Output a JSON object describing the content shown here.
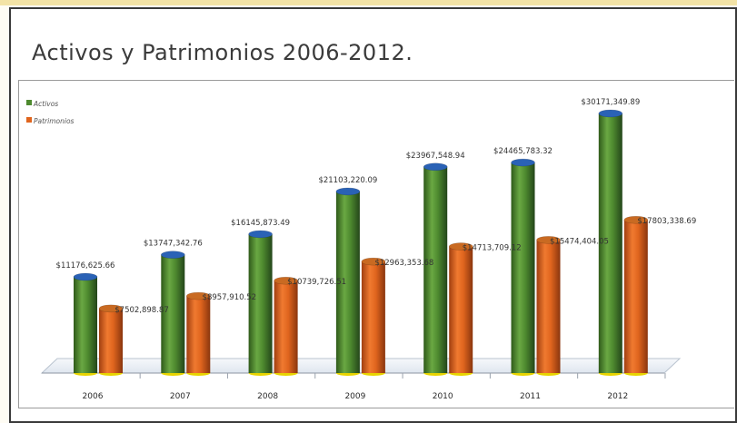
{
  "header": {
    "title": "Activos y Patrimonios 2006-2012."
  },
  "colors": {
    "activos": "#4e8a2f",
    "activos_top": "#2a62b6",
    "patrimonios": "#e0651e",
    "patrimonios_top": "#c96a22",
    "floor_edge": "#e8d400"
  },
  "chart_data": {
    "type": "bar",
    "title": "",
    "xlabel": "",
    "ylabel": "",
    "categories": [
      "2006",
      "2007",
      "2008",
      "2009",
      "2010",
      "2011",
      "2012"
    ],
    "series": [
      {
        "name": "Activos",
        "values": [
          11176625.66,
          13747342.76,
          16145873.49,
          21103220.09,
          23967548.94,
          24465783.32,
          30171349.89
        ],
        "labels": [
          "$11176,625.66",
          "$13747,342.76",
          "$16145,873.49",
          "$21103,220.09",
          "$23967,548.94",
          "$24465,783.32",
          "$30171,349.89"
        ]
      },
      {
        "name": "Patrimonios",
        "values": [
          7502898.87,
          8957910.52,
          10739726.51,
          12963353.68,
          14713709.12,
          15474404.05,
          17803338.69
        ],
        "labels": [
          "$7502,898.87",
          "$8957,910.52",
          "$10739,726.51",
          "$12963,353.68",
          "$14713,709.12",
          "$15474,404.05",
          "$17803,338.69"
        ]
      }
    ],
    "ylim": [
      0,
      30171349.89
    ],
    "grid": false,
    "legend": "top-left"
  }
}
